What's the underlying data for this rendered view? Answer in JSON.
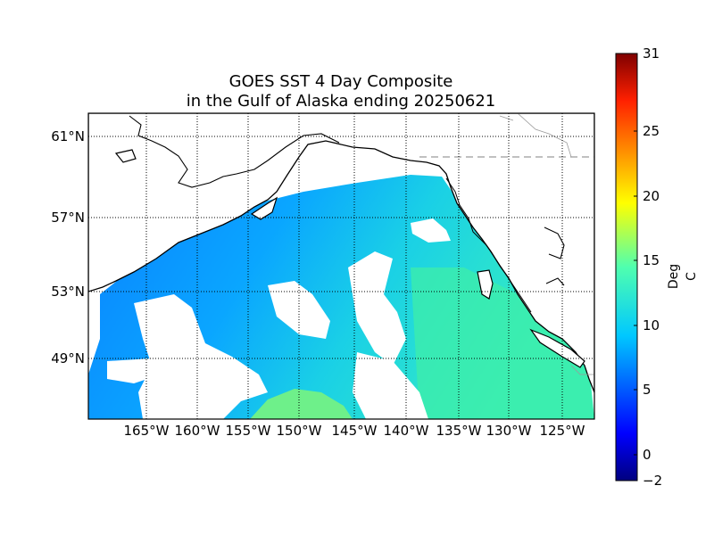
{
  "title": {
    "line1": "GOES SST 4 Day Composite",
    "line2": "in the Gulf of Alaska ending 20250621"
  },
  "map": {
    "lat_labels": [
      "61°N",
      "57°N",
      "53°N",
      "49°N"
    ],
    "lon_labels": [
      "165°W",
      "160°W",
      "155°W",
      "150°W",
      "145°W",
      "140°W",
      "135°W",
      "130°W",
      "125°W"
    ],
    "grid": "dotted",
    "region": "Gulf of Alaska",
    "colors": {
      "land": "#ffffff",
      "coastline": "#000000",
      "border": "#9a9a9a",
      "cold_water": "#0a8cff",
      "mid_water": "#16d6e8",
      "warm_water": "#3ef0b0",
      "warmest_water": "#7ef07a"
    }
  },
  "colorbar": {
    "label": "Deg C",
    "min": -2,
    "max": 31,
    "ticks": [
      "31",
      "25",
      "20",
      "15",
      "10",
      "5",
      "0",
      "−2"
    ],
    "colormap": "jet"
  }
}
